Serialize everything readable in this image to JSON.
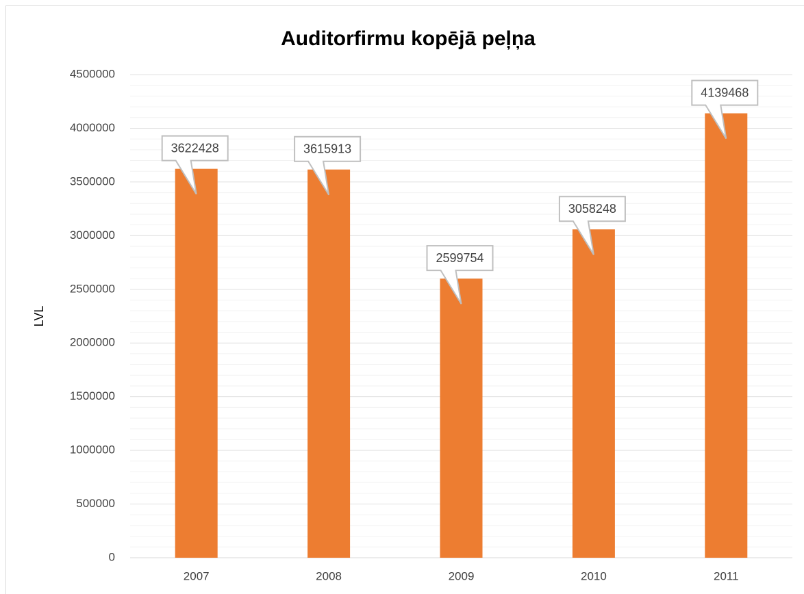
{
  "chart_data": {
    "type": "bar",
    "title": "Auditorfirmu kopējā peļņa",
    "y_label": "LVL",
    "categories": [
      "2007",
      "2008",
      "2009",
      "2010",
      "2011"
    ],
    "values": [
      3622428,
      3615913,
      2599754,
      3058248,
      4139468
    ],
    "color": "#ed7d31",
    "ylim": [
      0,
      4500000
    ],
    "yticks": [
      0,
      500000,
      1000000,
      1500000,
      2000000,
      2500000,
      3000000,
      3500000,
      4000000,
      4500000
    ],
    "grid": true,
    "minor_grid": true,
    "data_labels": true
  }
}
